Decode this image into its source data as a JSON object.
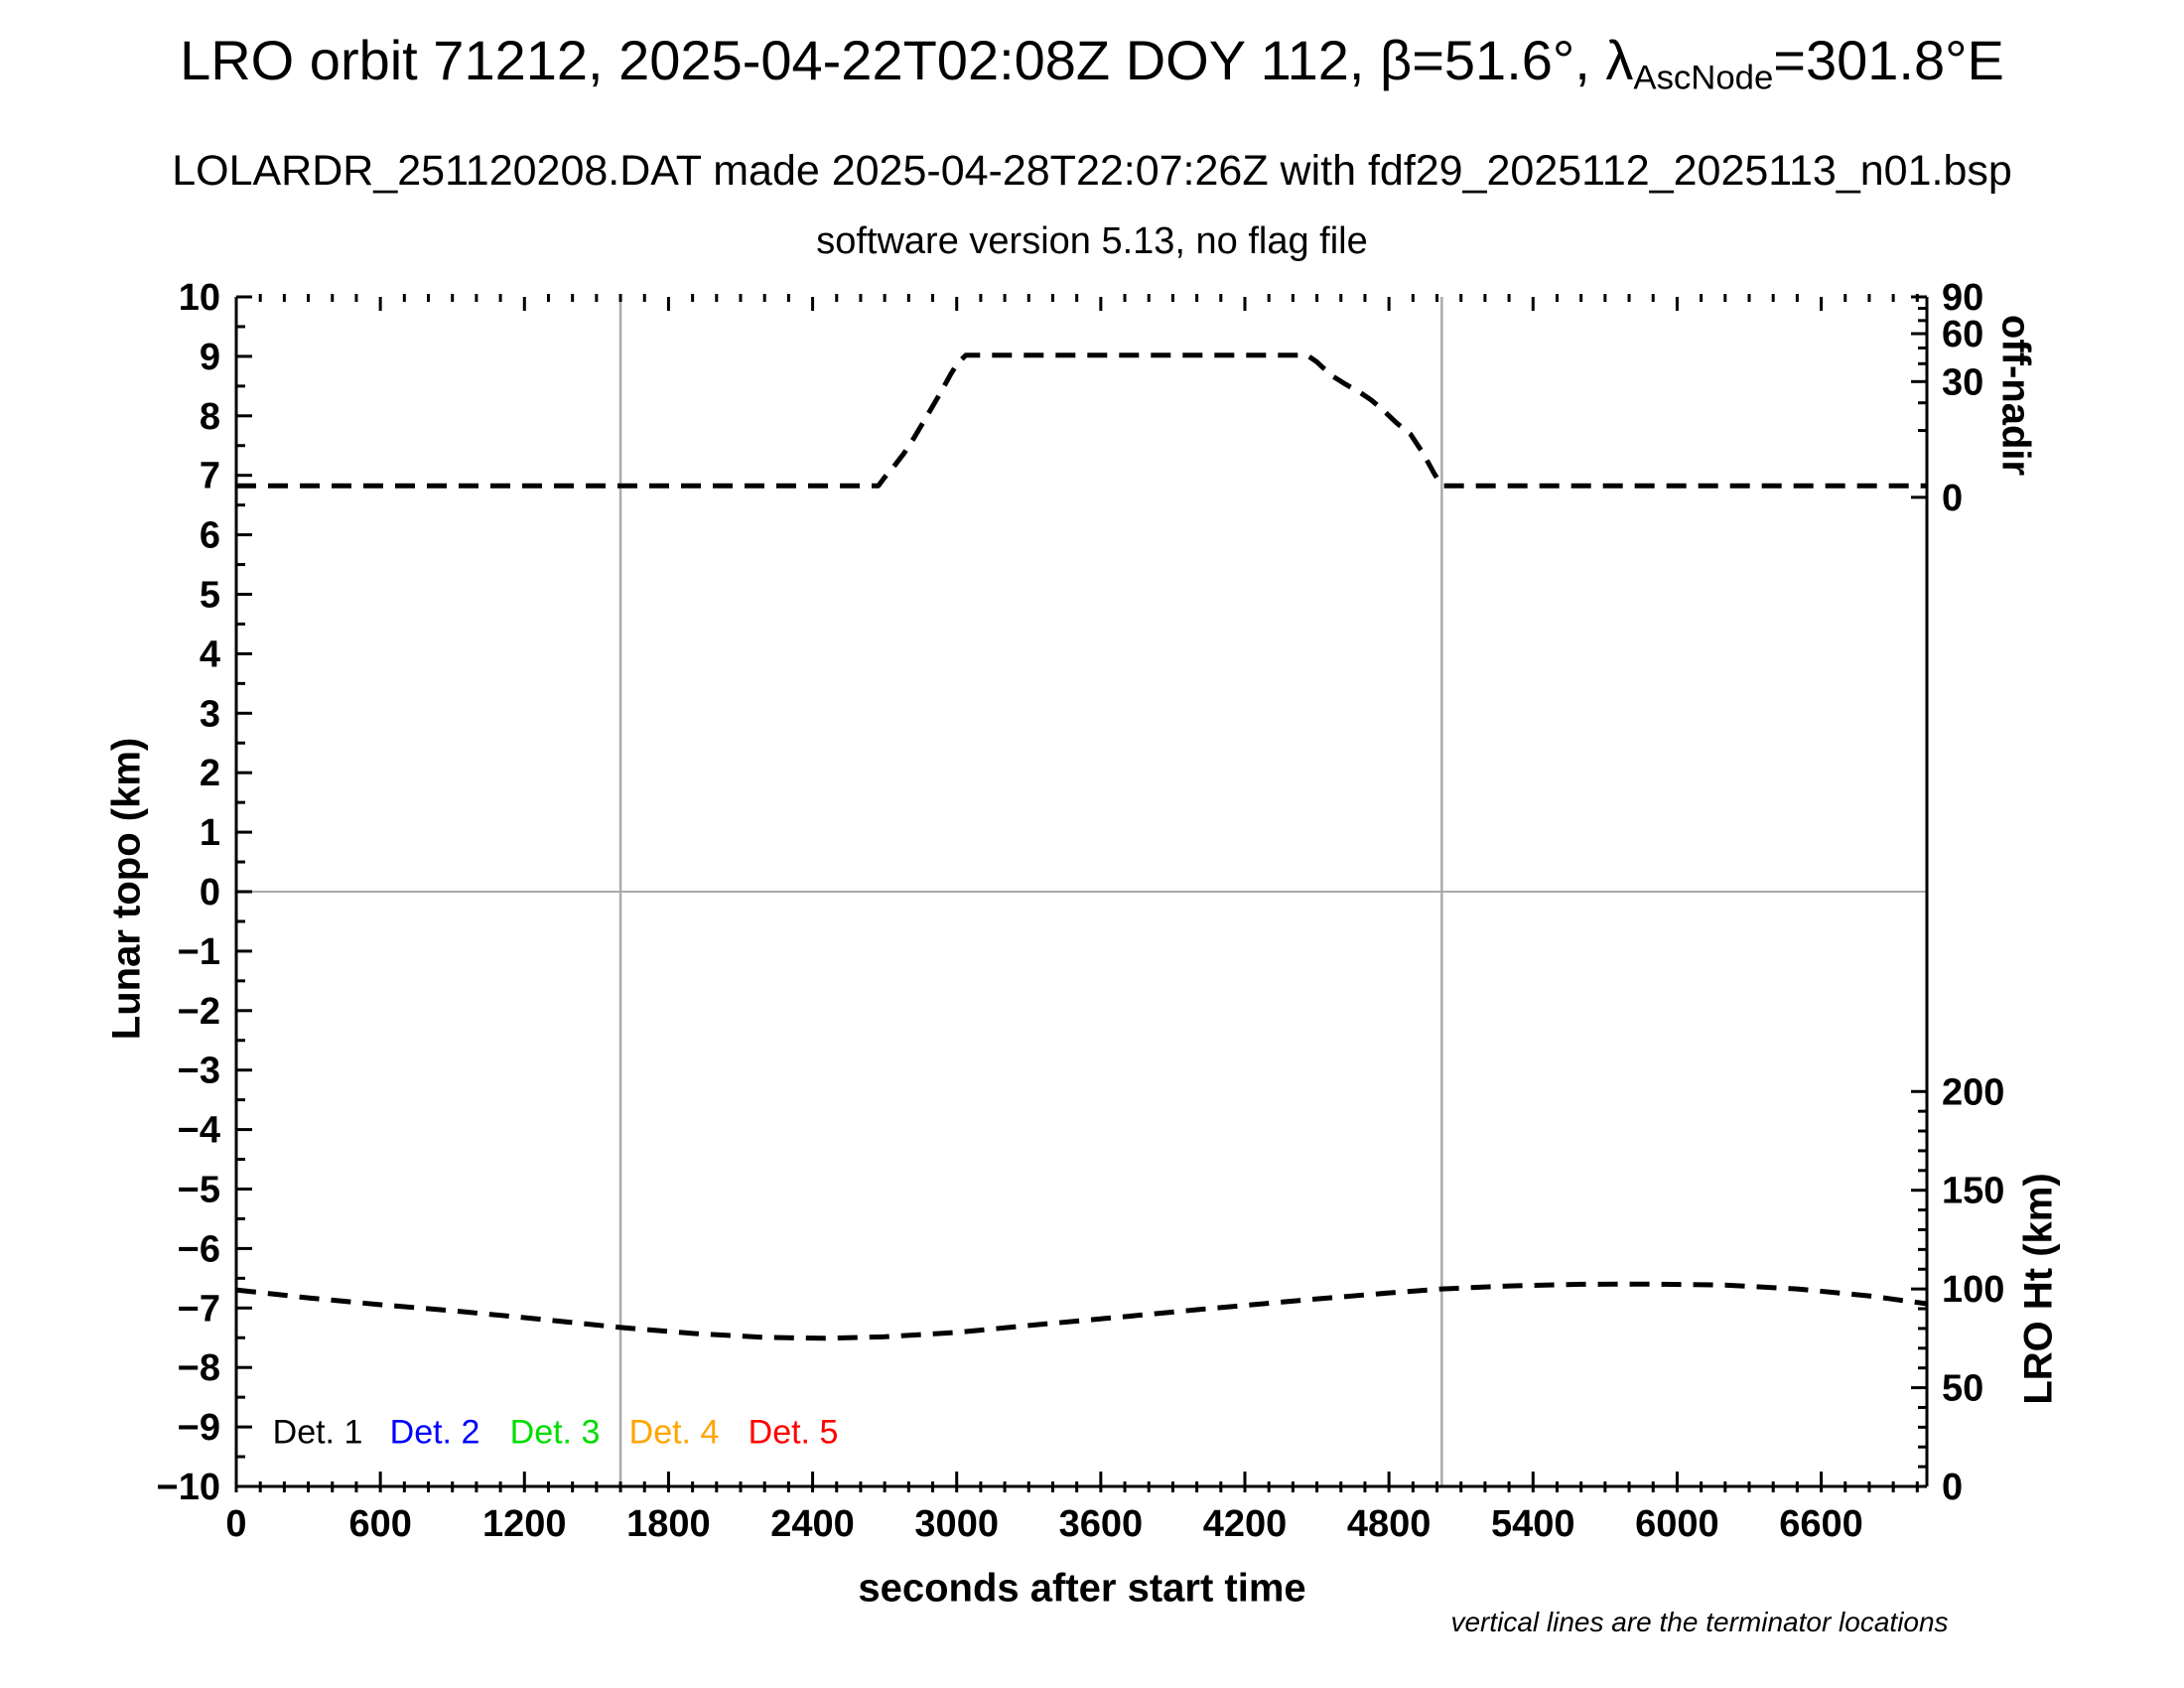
{
  "header": {
    "title_prefix": "LRO orbit 71212, 2025-04-22T02:08Z DOY 112, β=51.6°, λ",
    "title_subscript": "AscNode",
    "title_suffix": "=301.8°E",
    "subtitle": "LOLARDR_251120208.DAT made 2025-04-28T22:07:26Z with fdf29_2025112_2025113_n01.bsp",
    "version_line": "software version 5.13, no flag file"
  },
  "footnote": "vertical lines are the terminator locations",
  "legend": [
    {
      "label": "Det. 1",
      "color": "#000000"
    },
    {
      "label": "Det. 2",
      "color": "#0000ff"
    },
    {
      "label": "Det. 3",
      "color": "#00dd00"
    },
    {
      "label": "Det. 4",
      "color": "#ffa500"
    },
    {
      "label": "Det. 5",
      "color": "#ff0000"
    }
  ],
  "theme": {
    "background": "#ffffff",
    "axis_color": "#000000",
    "grid_color": "#aaaaaa",
    "curve_color": "#000000"
  },
  "chart_data": {
    "type": "line",
    "title": "LRO orbit 71212, 2025-04-22T02:08Z DOY 112, β=51.6°, λAscNode=301.8°E",
    "x_axis": {
      "label": "seconds after start time",
      "range": [
        0,
        7040
      ],
      "major_ticks": [
        0,
        600,
        1200,
        1800,
        2400,
        3000,
        3600,
        4200,
        4800,
        5400,
        6000,
        6600
      ],
      "minor_tick_interval": 100
    },
    "y_left_axis": {
      "label": "Lunar topo (km)",
      "range": [
        -10,
        10
      ],
      "major_tick_interval": 1,
      "minor_tick_interval": 0.5
    },
    "y_right_upper_axis": {
      "label": "off-nadir",
      "unit": "deg",
      "major_ticks": [
        0,
        30,
        60,
        90
      ],
      "minor_tick_interval": 10,
      "scale": "sqrt",
      "note": "nonlinear scale: 0 deg maps to 6.63 on left axis, 90 deg to 10.0"
    },
    "y_right_lower_axis": {
      "label": "LRO Ht (km)",
      "unit": "km",
      "major_ticks": [
        0,
        50,
        100,
        150,
        200
      ],
      "minor_tick_interval": 10,
      "note": "linear scale: 0 km at left-axis -10, 200 km at left-axis -3.36"
    },
    "grid": {
      "horizontal_zero_line": true
    },
    "terminator_lines_s": [
      1600,
      5020
    ],
    "series": [
      {
        "name": "off-nadir angle",
        "axis": "y_right_upper_axis",
        "unit": "deg",
        "style": "dashed",
        "color": "#000000",
        "points": [
          [
            0,
            0.3
          ],
          [
            400,
            0.3
          ],
          [
            800,
            0.3
          ],
          [
            1200,
            0.3
          ],
          [
            1600,
            0.3
          ],
          [
            2000,
            0.3
          ],
          [
            2400,
            0.3
          ],
          [
            2674,
            0.3
          ],
          [
            2700,
            0.9
          ],
          [
            2740,
            2.2
          ],
          [
            2780,
            4.3
          ],
          [
            2820,
            7.7
          ],
          [
            2860,
            12.5
          ],
          [
            2900,
            18.6
          ],
          [
            2940,
            26
          ],
          [
            2975,
            34
          ],
          [
            3005,
            40.5
          ],
          [
            3038,
            45.2
          ],
          [
            3400,
            45.2
          ],
          [
            3800,
            45.2
          ],
          [
            4200,
            45.2
          ],
          [
            4460,
            45.2
          ],
          [
            4500,
            41
          ],
          [
            4560,
            33.3
          ],
          [
            4620,
            28.6
          ],
          [
            4680,
            24.6
          ],
          [
            4725,
            21.3
          ],
          [
            4770,
            17.5
          ],
          [
            4830,
            12.5
          ],
          [
            4890,
            8.9
          ],
          [
            4940,
            4.5
          ],
          [
            4990,
            1.2
          ],
          [
            5020,
            0.3
          ],
          [
            5400,
            0.3
          ],
          [
            5800,
            0.3
          ],
          [
            6200,
            0.3
          ],
          [
            6600,
            0.3
          ],
          [
            7040,
            0.3
          ]
        ]
      },
      {
        "name": "LRO height",
        "axis": "y_right_lower_axis",
        "unit": "km",
        "style": "dashed",
        "color": "#000000",
        "points": [
          [
            0,
            99.5
          ],
          [
            300,
            95.5
          ],
          [
            600,
            92
          ],
          [
            900,
            89
          ],
          [
            1200,
            85.5
          ],
          [
            1600,
            80.5
          ],
          [
            1900,
            77.5
          ],
          [
            2200,
            75.5
          ],
          [
            2450,
            75
          ],
          [
            2700,
            75.8
          ],
          [
            3000,
            78
          ],
          [
            3300,
            81.5
          ],
          [
            3700,
            86
          ],
          [
            4000,
            89.5
          ],
          [
            4500,
            95
          ],
          [
            4800,
            98
          ],
          [
            5020,
            100
          ],
          [
            5300,
            101.5
          ],
          [
            5600,
            102.4
          ],
          [
            5900,
            102.5
          ],
          [
            6200,
            102
          ],
          [
            6500,
            100
          ],
          [
            6800,
            96.5
          ],
          [
            7040,
            92.5
          ]
        ]
      }
    ]
  }
}
